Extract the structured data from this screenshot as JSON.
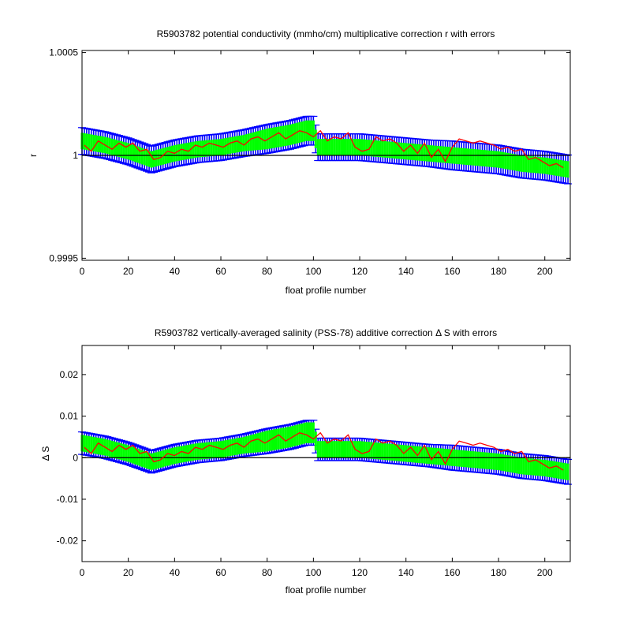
{
  "chart_data": [
    {
      "type": "line",
      "title": "R5903782 potential conductivity (mmho/cm) multiplicative correction r with errors",
      "xlabel": "float profile number",
      "ylabel": "r",
      "xlim": [
        0,
        211
      ],
      "ylim": [
        0.99949,
        1.00051
      ],
      "xticks": [
        0,
        20,
        40,
        60,
        80,
        100,
        120,
        140,
        160,
        180,
        200
      ],
      "yticks": [
        0.9995,
        1,
        1.0005
      ],
      "ytick_labels": [
        "0.9995",
        "1",
        "1.0005"
      ],
      "reference_line": 1,
      "grid": false,
      "colors": {
        "error_outer": "#0000ff",
        "error_inner": "#00ff00",
        "series": "#ff0000",
        "reference": "#000000"
      },
      "anchors": {
        "x": [
          0,
          5,
          10,
          20,
          30,
          40,
          50,
          60,
          70,
          80,
          90,
          97,
          100,
          102,
          105,
          110,
          120,
          130,
          140,
          150,
          160,
          170,
          180,
          190,
          200,
          211
        ],
        "fit": [
          1.00007,
          1.00006,
          1.00005,
          1.00002,
          0.99998,
          1.00001,
          1.00003,
          1.00004,
          1.00006,
          1.00008,
          1.0001,
          1.00012,
          1.00012,
          1.00004,
          1.00004,
          1.00004,
          1.00004,
          1.00003,
          1.00002,
          1.00001,
          1.0,
          0.99999,
          0.99998,
          0.99996,
          0.99995,
          0.99993
        ],
        "green": [
          4e-05,
          4e-05,
          4e-05,
          4e-05,
          4e-05,
          4e-05,
          4e-05,
          4e-05,
          4e-05,
          5e-05,
          5e-05,
          5e-05,
          5e-05,
          4e-05,
          4e-05,
          4e-05,
          4e-05,
          4e-05,
          4e-05,
          4e-05,
          4e-05,
          4e-05,
          4e-05,
          4e-05,
          4e-05,
          4e-05
        ],
        "blue": [
          6.5e-05,
          6.5e-05,
          6.5e-05,
          6.5e-05,
          6.5e-05,
          6.5e-05,
          6.5e-05,
          6.5e-05,
          6.5e-05,
          7e-05,
          7e-05,
          7e-05,
          7e-05,
          6.5e-05,
          6.5e-05,
          6.5e-05,
          6.5e-05,
          6.5e-05,
          6.5e-05,
          6.5e-05,
          7e-05,
          7e-05,
          7e-05,
          7e-05,
          7e-05,
          7e-05
        ]
      },
      "series": [
        {
          "x": [
            1,
            4,
            7,
            10,
            13,
            16,
            19,
            22,
            25,
            28,
            31,
            34,
            37,
            40,
            43,
            46,
            49,
            52,
            55,
            58,
            61,
            64,
            67,
            70,
            73,
            76,
            79,
            82,
            85,
            88,
            91,
            94,
            97,
            100,
            103,
            106,
            109,
            112,
            115,
            118,
            121,
            124,
            127,
            130,
            133,
            136,
            139,
            142,
            145,
            148,
            151,
            154,
            157,
            160,
            163,
            166,
            169,
            172,
            175,
            178,
            181,
            184,
            187,
            190,
            193,
            196,
            199,
            202,
            205,
            208
          ],
          "values": [
            1.00005,
            1.00002,
            1.00007,
            1.00005,
            1.00003,
            1.00006,
            1.00004,
            1.00006,
            1.00002,
            1.00003,
            0.99998,
            0.99999,
            1.00002,
            1.00001,
            1.00003,
            1.00002,
            1.00005,
            1.00004,
            1.00006,
            1.00005,
            1.00004,
            1.00006,
            1.00007,
            1.00005,
            1.00008,
            1.00009,
            1.00007,
            1.00009,
            1.00011,
            1.00008,
            1.0001,
            1.00012,
            1.00011,
            1.00009,
            1.00012,
            1.00007,
            1.00009,
            1.00008,
            1.00011,
            1.00004,
            1.00002,
            1.00003,
            1.00009,
            1.00007,
            1.00008,
            1.00006,
            1.00002,
            1.00005,
            1.00001,
            1.00006,
            0.99999,
            1.00003,
            0.99997,
            1.00004,
            1.00008,
            1.00007,
            1.00006,
            1.00007,
            1.00006,
            1.00005,
            1.00003,
            1.00004,
            1.00002,
            1.00003,
            0.99998,
            0.99999,
            0.99997,
            0.99995,
            0.99996,
            0.99994
          ]
        }
      ]
    },
    {
      "type": "line",
      "title": "R5903782 vertically-averaged salinity (PSS-78) additive correction Δ S with errors",
      "xlabel": "float profile number",
      "ylabel": "Δ S",
      "xlim": [
        0,
        211
      ],
      "ylim": [
        -0.025,
        0.027
      ],
      "xticks": [
        0,
        20,
        40,
        60,
        80,
        100,
        120,
        140,
        160,
        180,
        200
      ],
      "yticks": [
        -0.02,
        -0.01,
        0,
        0.01,
        0.02
      ],
      "ytick_labels": [
        "-0.02",
        "-0.01",
        "0",
        "0.01",
        "0.02"
      ],
      "reference_line": 0,
      "grid": false,
      "colors": {
        "error_outer": "#0000ff",
        "error_inner": "#00ff00",
        "series": "#ff0000",
        "reference": "#000000"
      },
      "anchors": {
        "x": [
          0,
          5,
          10,
          20,
          30,
          40,
          50,
          60,
          70,
          80,
          90,
          97,
          100,
          102,
          105,
          110,
          120,
          130,
          140,
          150,
          160,
          170,
          180,
          190,
          200,
          211
        ],
        "fit": [
          0.0035,
          0.003,
          0.0025,
          0.001,
          -0.001,
          0.0005,
          0.0015,
          0.002,
          0.003,
          0.004,
          0.005,
          0.006,
          0.006,
          0.002,
          0.002,
          0.002,
          0.002,
          0.0015,
          0.001,
          0.0005,
          0.0,
          -0.0005,
          -0.001,
          -0.002,
          -0.0025,
          -0.0035
        ],
        "green": [
          0.002,
          0.002,
          0.002,
          0.002,
          0.002,
          0.002,
          0.002,
          0.002,
          0.002,
          0.0025,
          0.0025,
          0.0025,
          0.0025,
          0.002,
          0.002,
          0.002,
          0.002,
          0.002,
          0.002,
          0.002,
          0.002,
          0.002,
          0.002,
          0.002,
          0.002,
          0.002
        ],
        "blue": [
          0.0027,
          0.0027,
          0.0027,
          0.0027,
          0.0027,
          0.0027,
          0.0027,
          0.0027,
          0.0027,
          0.003,
          0.003,
          0.003,
          0.003,
          0.0027,
          0.0027,
          0.0027,
          0.0027,
          0.0027,
          0.0027,
          0.0027,
          0.003,
          0.003,
          0.003,
          0.003,
          0.003,
          0.003
        ]
      },
      "series": [
        {
          "x": [
            1,
            4,
            7,
            10,
            13,
            16,
            19,
            22,
            25,
            28,
            31,
            34,
            37,
            40,
            43,
            46,
            49,
            52,
            55,
            58,
            61,
            64,
            67,
            70,
            73,
            76,
            79,
            82,
            85,
            88,
            91,
            94,
            97,
            100,
            103,
            106,
            109,
            112,
            115,
            118,
            121,
            124,
            127,
            130,
            133,
            136,
            139,
            142,
            145,
            148,
            151,
            154,
            157,
            160,
            163,
            166,
            169,
            172,
            175,
            178,
            181,
            184,
            187,
            190,
            193,
            196,
            199,
            202,
            205,
            208
          ],
          "values": [
            0.0025,
            0.001,
            0.0035,
            0.0025,
            0.0015,
            0.003,
            0.002,
            0.003,
            0.001,
            0.0015,
            -0.001,
            -0.0005,
            0.001,
            0.0005,
            0.0015,
            0.001,
            0.0025,
            0.002,
            0.003,
            0.0025,
            0.002,
            0.003,
            0.0035,
            0.0025,
            0.004,
            0.0045,
            0.0035,
            0.0045,
            0.0055,
            0.004,
            0.005,
            0.006,
            0.0055,
            0.0045,
            0.006,
            0.0035,
            0.0045,
            0.004,
            0.0055,
            0.002,
            0.001,
            0.0015,
            0.0045,
            0.0035,
            0.004,
            0.003,
            0.001,
            0.0025,
            0.0005,
            0.003,
            -0.0005,
            0.0015,
            -0.0015,
            0.002,
            0.004,
            0.0035,
            0.003,
            0.0035,
            0.003,
            0.0025,
            0.0015,
            0.002,
            0.001,
            0.0015,
            -0.001,
            -0.0005,
            -0.0015,
            -0.0025,
            -0.002,
            -0.003
          ]
        }
      ]
    }
  ]
}
